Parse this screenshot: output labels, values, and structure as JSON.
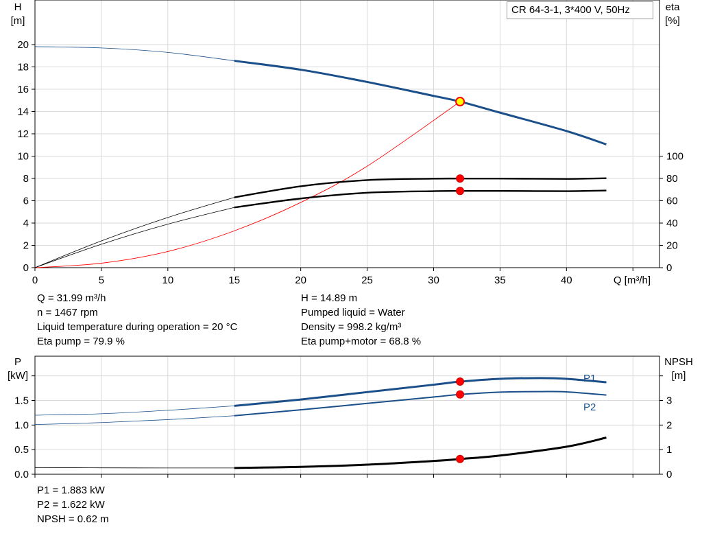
{
  "legend": "CR 64-3-1, 3*400 V, 50Hz",
  "info_left": [
    "Q = 31.99 m³/h",
    "n = 1467 rpm",
    "Liquid temperature during operation = 20 °C",
    "Eta pump = 79.9 %"
  ],
  "info_right": [
    "H = 14.89 m",
    "Pumped liquid = Water",
    "Density = 998.2 kg/m³",
    "Eta pump+motor = 68.8 %"
  ],
  "info_bottom": [
    "P1 = 1.883 kW",
    "P2 = 1.622 kW",
    "NPSH = 0.62 m"
  ],
  "colors": {
    "curve_blue": "#1a4f8a",
    "curve_black": "#000000",
    "system_red": "#ff0000",
    "duty_yellow": "#ffff00",
    "grid": "#d9d9d9"
  },
  "chart_data": [
    {
      "type": "line",
      "title": "",
      "xlabel": "Q [m³/h]",
      "ylabel": "H\n[m]",
      "y2label": "eta\n[%]",
      "xlim": [
        0,
        47
      ],
      "ylim": [
        0,
        24
      ],
      "y2lim": [
        0,
        240
      ],
      "x_ticks": [
        0,
        5,
        10,
        15,
        20,
        25,
        30,
        35,
        40
      ],
      "y_ticks": [
        0,
        2,
        4,
        6,
        8,
        10,
        12,
        14,
        16,
        18,
        20
      ],
      "y2_ticks": [
        0,
        20,
        40,
        60,
        80,
        100
      ],
      "grid": true,
      "series": [
        {
          "role": "head",
          "axis": "left",
          "color": "#1a4f8a",
          "x": [
            0,
            5,
            10,
            15,
            20,
            25,
            30,
            32,
            35,
            40,
            43
          ],
          "y": [
            19.82,
            19.7,
            19.3,
            18.55,
            17.75,
            16.65,
            15.4,
            14.89,
            13.9,
            12.25,
            11.05
          ]
        },
        {
          "role": "eta_pump",
          "axis": "right",
          "color": "#000000",
          "x": [
            0,
            5,
            10,
            15,
            20,
            25,
            30,
            32,
            35,
            40,
            43
          ],
          "y": [
            0,
            24,
            45,
            63,
            73,
            78.5,
            79.8,
            79.9,
            79.9,
            79.6,
            80.2
          ]
        },
        {
          "role": "eta_total",
          "axis": "right",
          "color": "#000000",
          "x": [
            0,
            5,
            10,
            15,
            20,
            25,
            30,
            32,
            35,
            40,
            43
          ],
          "y": [
            0,
            21,
            39,
            54,
            62,
            67.2,
            68.6,
            68.8,
            68.8,
            68.6,
            69.2
          ]
        },
        {
          "role": "system",
          "axis": "left",
          "color": "#ff0000",
          "x": [
            0,
            5,
            10,
            15,
            20,
            25,
            32
          ],
          "y": [
            0,
            0.4,
            1.45,
            3.3,
            5.85,
            9.1,
            14.89
          ]
        }
      ],
      "duty_points": [
        {
          "axis": "left",
          "x": 31.99,
          "y": 14.89,
          "style": "yellow"
        },
        {
          "axis": "right",
          "x": 31.99,
          "y": 79.9,
          "style": "red"
        },
        {
          "axis": "right",
          "x": 31.99,
          "y": 68.8,
          "style": "red"
        }
      ]
    },
    {
      "type": "line",
      "title": "",
      "xlabel": "",
      "ylabel": "P\n[kW]",
      "y2label": "NPSH\n[m]",
      "xlim": [
        0,
        47
      ],
      "ylim": [
        0,
        2.4
      ],
      "y2lim": [
        0,
        4.8
      ],
      "y_ticks": [
        0.0,
        0.5,
        1.0,
        1.5,
        2.0
      ],
      "y_tick_labels": [
        "0.0",
        "0.5",
        "1.0",
        "1.5",
        ""
      ],
      "y2_ticks": [
        0,
        1,
        2,
        3,
        4
      ],
      "y2_tick_labels": [
        "0",
        "1",
        "2",
        "3",
        ""
      ],
      "grid": true,
      "series": [
        {
          "name": "P1",
          "axis": "left",
          "color": "#1a4f8a",
          "x": [
            0,
            5,
            10,
            15,
            20,
            25,
            30,
            32,
            35,
            38,
            40,
            43
          ],
          "y": [
            1.2,
            1.23,
            1.3,
            1.39,
            1.52,
            1.67,
            1.82,
            1.883,
            1.94,
            1.955,
            1.94,
            1.87
          ]
        },
        {
          "name": "P2",
          "axis": "left",
          "color": "#1a4f8a",
          "x": [
            0,
            5,
            10,
            15,
            20,
            25,
            30,
            32,
            35,
            38,
            40,
            43
          ],
          "y": [
            1.01,
            1.05,
            1.11,
            1.19,
            1.31,
            1.44,
            1.57,
            1.622,
            1.67,
            1.68,
            1.675,
            1.61
          ]
        },
        {
          "role": "npsh",
          "axis": "right",
          "color": "#000000",
          "x": [
            0,
            5,
            10,
            15,
            20,
            25,
            30,
            32,
            35,
            40,
            43
          ],
          "y": [
            0.27,
            0.26,
            0.255,
            0.255,
            0.3,
            0.39,
            0.54,
            0.62,
            0.76,
            1.12,
            1.49
          ]
        }
      ],
      "duty_points": [
        {
          "axis": "left",
          "x": 31.99,
          "y": 1.883,
          "style": "red"
        },
        {
          "axis": "left",
          "x": 31.99,
          "y": 1.622,
          "style": "red"
        },
        {
          "axis": "right",
          "x": 31.99,
          "y": 0.62,
          "style": "red"
        }
      ]
    }
  ]
}
